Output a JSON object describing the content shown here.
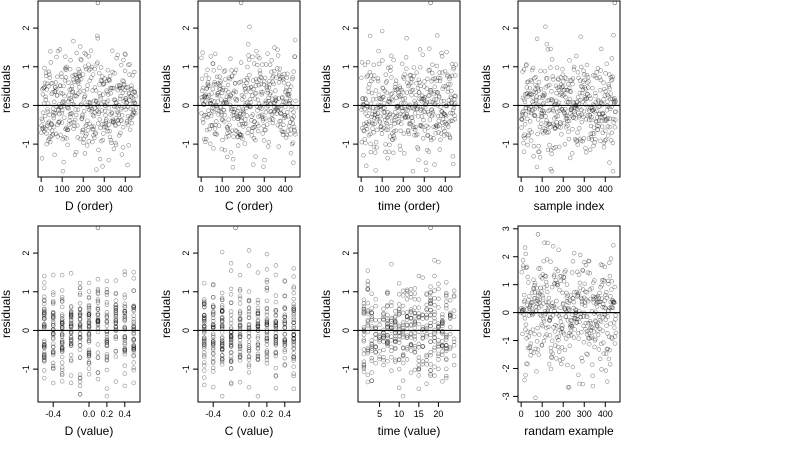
{
  "chart_data": [
    {
      "type": "scatter",
      "xlabel": "D (order)",
      "ylabel": "residuals",
      "xlim": [
        -15,
        470
      ],
      "ylim": [
        -1.85,
        2.7
      ],
      "xticks": [
        "0",
        "100",
        "200",
        "300",
        "400"
      ],
      "yticks": [
        "-1",
        "0",
        "1",
        "2"
      ],
      "hline": 0,
      "x_kind": "index",
      "x_range": [
        1,
        450
      ],
      "y_spread": 0.62,
      "outlier": [
        270,
        2.65
      ],
      "seed": 11
    },
    {
      "type": "scatter",
      "xlabel": "C (order)",
      "ylabel": "residuals",
      "xlim": [
        -15,
        470
      ],
      "ylim": [
        -1.85,
        2.7
      ],
      "xticks": [
        "0",
        "100",
        "200",
        "300",
        "400"
      ],
      "yticks": [
        "-1",
        "0",
        "1",
        "2"
      ],
      "hline": 0,
      "x_kind": "index",
      "x_range": [
        1,
        450
      ],
      "y_spread": 0.62,
      "outlier": [
        190,
        2.65
      ],
      "seed": 23
    },
    {
      "type": "scatter",
      "xlabel": "time (order)",
      "ylabel": "residuals",
      "xlim": [
        -15,
        470
      ],
      "ylim": [
        -1.85,
        2.7
      ],
      "xticks": [
        "0",
        "100",
        "200",
        "300",
        "400"
      ],
      "yticks": [
        "-1",
        "0",
        "1",
        "2"
      ],
      "hline": 0,
      "x_kind": "index",
      "x_range": [
        1,
        450
      ],
      "y_spread": 0.62,
      "outlier": [
        330,
        2.65
      ],
      "seed": 37
    },
    {
      "type": "scatter",
      "xlabel": "sample index",
      "ylabel": "residuals",
      "xlim": [
        -15,
        470
      ],
      "ylim": [
        -1.85,
        2.7
      ],
      "xticks": [
        "0",
        "100",
        "200",
        "300",
        "400"
      ],
      "yticks": [
        "-1",
        "0",
        "1",
        "2"
      ],
      "hline": 0,
      "x_kind": "index",
      "x_range": [
        1,
        450
      ],
      "y_spread": 0.62,
      "outlier": [
        445,
        2.65
      ],
      "seed": 41
    },
    {
      "type": "scatter",
      "xlabel": "D (value)",
      "ylabel": "residuals",
      "xlim": [
        -0.57,
        0.57
      ],
      "ylim": [
        -1.85,
        2.7
      ],
      "xticks": [
        "-0.4",
        "0.0",
        "0.2",
        "0.4"
      ],
      "yticks": [
        "-1",
        "0",
        "1",
        "2"
      ],
      "hline": 0,
      "x_kind": "discrete",
      "x_values": [
        -0.5,
        -0.4,
        -0.3,
        -0.2,
        -0.1,
        0.0,
        0.1,
        0.2,
        0.3,
        0.4,
        0.5
      ],
      "y_spread": 0.62,
      "outlier": [
        0.1,
        2.65
      ],
      "seed": 53
    },
    {
      "type": "scatter",
      "xlabel": "C (value)",
      "ylabel": "residuals",
      "xlim": [
        -0.57,
        0.57
      ],
      "ylim": [
        -1.85,
        2.7
      ],
      "xticks": [
        "-0.4",
        "0.0",
        "0.2",
        "0.4"
      ],
      "yticks": [
        "-1",
        "0",
        "1",
        "2"
      ],
      "hline": 0,
      "x_kind": "discrete",
      "x_values": [
        -0.5,
        -0.4,
        -0.3,
        -0.2,
        -0.1,
        0.0,
        0.1,
        0.2,
        0.3,
        0.4,
        0.5
      ],
      "y_spread": 0.62,
      "outlier": [
        -0.15,
        2.65
      ],
      "seed": 67
    },
    {
      "type": "scatter",
      "xlabel": "time (value)",
      "ylabel": "residuals",
      "xlim": [
        -0.5,
        25.5
      ],
      "ylim": [
        -1.85,
        2.7
      ],
      "xticks": [
        "5",
        "10",
        "15",
        "20"
      ],
      "yticks": [
        "-1",
        "0",
        "1",
        "2"
      ],
      "hline": 0,
      "x_kind": "discrete",
      "x_values": [
        1,
        2,
        3,
        4,
        5,
        6,
        7,
        8,
        9,
        10,
        11,
        12,
        13,
        14,
        15,
        16,
        17,
        18,
        19,
        20,
        21,
        22,
        23,
        24
      ],
      "y_spread": 0.62,
      "outlier": [
        18,
        2.65
      ],
      "seed": 71
    },
    {
      "type": "scatter",
      "xlabel": "randam example",
      "ylabel": "residuals",
      "xlim": [
        -15,
        470
      ],
      "ylim": [
        -3.2,
        3.1
      ],
      "xticks": [
        "0",
        "100",
        "200",
        "300",
        "400"
      ],
      "yticks": [
        "-3",
        "-2",
        "-1",
        "0",
        "1",
        "2",
        "3"
      ],
      "hline": 0,
      "x_kind": "index",
      "x_range": [
        1,
        450
      ],
      "y_spread": 1.0,
      "outlier": [
        80,
        2.8
      ],
      "seed": 89
    }
  ]
}
